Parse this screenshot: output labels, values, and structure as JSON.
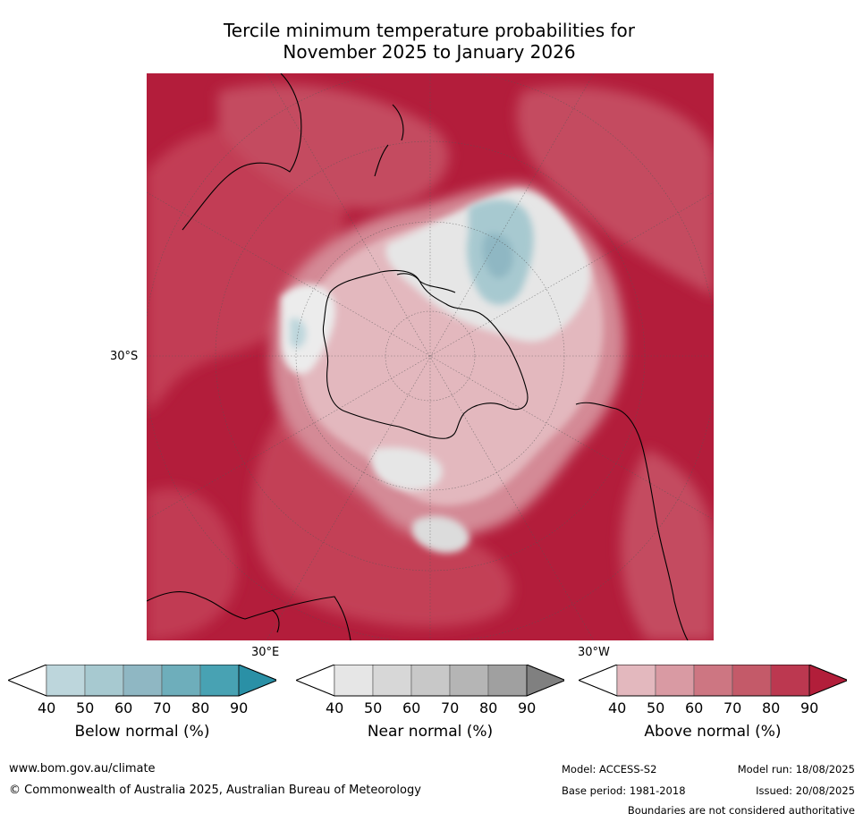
{
  "title": {
    "line1": "Tercile minimum temperature probabilities for",
    "line2": "November 2025 to January 2026"
  },
  "map": {
    "lat_label": "30°S",
    "lon_label_east": "30°E",
    "lon_label_west": "30°W"
  },
  "colorbars": [
    {
      "id": "below",
      "title": "Below normal (%)",
      "ticks": [
        "40",
        "50",
        "60",
        "70",
        "80",
        "90"
      ],
      "colors": [
        "#ffffff",
        "#bdd6dc",
        "#a7c9d0",
        "#8fb7c3",
        "#6eaebb",
        "#48a2b3",
        "#2a90a6"
      ]
    },
    {
      "id": "near",
      "title": "Near normal (%)",
      "ticks": [
        "40",
        "50",
        "60",
        "70",
        "80",
        "90"
      ],
      "colors": [
        "#ffffff",
        "#e6e6e6",
        "#d7d7d7",
        "#c8c8c8",
        "#b5b5b5",
        "#a0a0a0",
        "#808080"
      ]
    },
    {
      "id": "above",
      "title": "Above normal (%)",
      "ticks": [
        "40",
        "50",
        "60",
        "70",
        "80",
        "90"
      ],
      "colors": [
        "#ffffff",
        "#e3b8be",
        "#d99aa3",
        "#cd7682",
        "#c45a69",
        "#bc3850",
        "#b21e3a"
      ]
    }
  ],
  "footer": {
    "url": "www.bom.gov.au/climate",
    "copyright": "© Commonwealth of Australia 2025, Australian Bureau of Meteorology",
    "model": "Model: ACCESS-S2",
    "base_period": "Base period: 1981-2018",
    "model_run": "Model run: 18/08/2025",
    "issued": "Issued: 20/08/2025",
    "disclaimer": "Boundaries are not considered authoritative"
  }
}
